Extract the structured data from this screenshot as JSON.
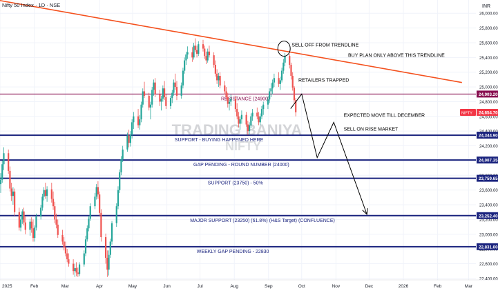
{
  "header": {
    "symbol_title": "Nifty 50 Index · 1D · NSE",
    "currency": "INR"
  },
  "watermark": {
    "line1": "TRADING BANIYA",
    "line2": "NIFTY"
  },
  "colors": {
    "up": "#26a69a",
    "down": "#ef5350",
    "trendline": "#f4511e",
    "resistance": "#880e4f",
    "support": "#1a237e",
    "label_bg_support": "#1a237e",
    "label_bg_resistance": "#880e4f",
    "label_bg_current": "#f23645"
  },
  "chart_data": {
    "type": "candlestick",
    "y_axis": {
      "ticks": [
        22400,
        22600,
        22800,
        23000,
        23200,
        23400,
        23600,
        23800,
        24000,
        24200,
        24400,
        24600,
        24800,
        25000,
        25200,
        25400,
        25600,
        25800,
        26000
      ],
      "tick_labels": [
        "22,400.00",
        "22,600.00",
        "22,800.00",
        "23,000.00",
        "23,200.00",
        "23,400.00",
        "23,600.00",
        "23,800.00",
        "24,000.00",
        "24,200.00",
        "24,400.00",
        "24,600.00",
        "24,800.00",
        "25,000.00",
        "25,200.00",
        "25,400.00",
        "25,600.00",
        "25,800.00",
        "26,000.00"
      ],
      "range": [
        22380,
        26180
      ]
    },
    "x_axis": {
      "labels": [
        "2025",
        "Feb",
        "Mar",
        "Apr",
        "May",
        "Jun",
        "Jul",
        "Aug",
        "Sep",
        "Oct",
        "Nov",
        "Dec",
        "2026",
        "Feb",
        "Mar"
      ],
      "label_days": [
        0,
        31,
        59,
        90,
        120,
        151,
        181,
        212,
        243,
        273,
        304,
        334,
        365,
        396,
        424
      ]
    },
    "price_labels": [
      {
        "text": "24,903.20",
        "value": 24903.2,
        "kind": "resistance"
      },
      {
        "text": "24,654.70",
        "value": 24654.7,
        "kind": "current",
        "tag": "NIFTY"
      },
      {
        "text": "24,344.90",
        "value": 24344.9,
        "kind": "support"
      },
      {
        "text": "24,007.35",
        "value": 24007.35,
        "kind": "support"
      },
      {
        "text": "23,759.65",
        "value": 23759.65,
        "kind": "support"
      },
      {
        "text": "23,252.40",
        "value": 23252.4,
        "kind": "support"
      },
      {
        "text": "22,831.00",
        "value": 22831,
        "kind": "support"
      }
    ],
    "horizontal_levels": [
      {
        "value": 24903.2,
        "label": "RESISTANCE (24900)",
        "kind": "resistance",
        "label_day": 200
      },
      {
        "value": 24344.9,
        "label": "SUPPORT - BUYING HAPPENED HERE",
        "kind": "support",
        "label_day": 158
      },
      {
        "value": 24007.35,
        "label": "GAP PENDING - ROUND NUMBER (24000)",
        "kind": "support",
        "label_day": 175
      },
      {
        "value": 23759.65,
        "label": "SUPPORT (23750) - 50%",
        "kind": "support",
        "label_day": 188
      },
      {
        "value": 23252.4,
        "label": "MAJOR SUPPORT (23250) (61.8%) (H&S Target) (CONFLUENCE)",
        "kind": "support",
        "label_day": 172
      },
      {
        "value": 22831,
        "label": "WEEKLY GAP PENDING - 22830",
        "kind": "support",
        "label_day": 178
      }
    ],
    "trendline": {
      "start": {
        "day": -3,
        "value": 26180
      },
      "end": {
        "day": 418,
        "value": 25060
      }
    },
    "annotations": [
      {
        "text": "SELL OFF FROM TRENDLINE",
        "day": 264,
        "value": 25550
      },
      {
        "text": "BUY PLAN ONLY ABOVE THIS TRENDLINE",
        "day": 315,
        "value": 25410
      },
      {
        "text": "RETAILERS TRAPPED",
        "day": 270,
        "value": 25070
      },
      {
        "text": "EXPECTED MOVE TILL DECEMBER",
        "day": 311,
        "value": 24595
      },
      {
        "text": "SELL ON RISE MARKET",
        "day": 311,
        "value": 24405
      }
    ],
    "callout_circle": {
      "day": 257,
      "value": 25520
    },
    "projection_path": [
      {
        "day": 263,
        "value": 24705
      },
      {
        "day": 273,
        "value": 24903
      },
      {
        "day": 287,
        "value": 24040
      },
      {
        "day": 302,
        "value": 24520
      },
      {
        "day": 332,
        "value": 23270
      }
    ],
    "candles": [
      {
        "o": 23680,
        "h": 23830,
        "l": 23560,
        "c": 23740
      },
      {
        "o": 23740,
        "h": 24000,
        "l": 23700,
        "c": 23950
      },
      {
        "o": 23950,
        "h": 24180,
        "l": 23870,
        "c": 24100
      },
      {
        "o": 24100,
        "h": 24150,
        "l": 23820,
        "c": 23860
      },
      {
        "o": 23860,
        "h": 23920,
        "l": 23580,
        "c": 23620
      },
      {
        "o": 23620,
        "h": 23700,
        "l": 23450,
        "c": 23520
      },
      {
        "o": 23520,
        "h": 23640,
        "l": 23400,
        "c": 23580
      },
      {
        "o": 23580,
        "h": 23620,
        "l": 23250,
        "c": 23300
      },
      {
        "o": 23300,
        "h": 23360,
        "l": 23050,
        "c": 23090
      },
      {
        "o": 23090,
        "h": 23250,
        "l": 23040,
        "c": 23200
      },
      {
        "o": 23200,
        "h": 23340,
        "l": 23140,
        "c": 23310
      },
      {
        "o": 23310,
        "h": 23360,
        "l": 23120,
        "c": 23160
      },
      {
        "o": 23160,
        "h": 23240,
        "l": 23000,
        "c": 23060
      },
      {
        "o": 23060,
        "h": 23210,
        "l": 22980,
        "c": 23170
      },
      {
        "o": 23170,
        "h": 23230,
        "l": 23020,
        "c": 23080
      },
      {
        "o": 23080,
        "h": 23200,
        "l": 22900,
        "c": 22950
      },
      {
        "o": 22950,
        "h": 23120,
        "l": 22900,
        "c": 23090
      },
      {
        "o": 23090,
        "h": 23280,
        "l": 23050,
        "c": 23240
      },
      {
        "o": 23240,
        "h": 23400,
        "l": 23200,
        "c": 23360
      },
      {
        "o": 23360,
        "h": 23550,
        "l": 23320,
        "c": 23510
      },
      {
        "o": 23510,
        "h": 23640,
        "l": 23460,
        "c": 23600
      },
      {
        "o": 23600,
        "h": 23700,
        "l": 23480,
        "c": 23520
      },
      {
        "o": 23520,
        "h": 23650,
        "l": 23440,
        "c": 23610
      },
      {
        "o": 23610,
        "h": 23700,
        "l": 23430,
        "c": 23480
      },
      {
        "o": 23480,
        "h": 23580,
        "l": 23330,
        "c": 23380
      },
      {
        "o": 23380,
        "h": 23440,
        "l": 23150,
        "c": 23200
      },
      {
        "o": 23200,
        "h": 23280,
        "l": 23080,
        "c": 23130
      },
      {
        "o": 23130,
        "h": 23200,
        "l": 22950,
        "c": 22990
      },
      {
        "o": 22990,
        "h": 23060,
        "l": 22860,
        "c": 22900
      },
      {
        "o": 22900,
        "h": 22960,
        "l": 22780,
        "c": 22820
      },
      {
        "o": 22820,
        "h": 22900,
        "l": 22700,
        "c": 22740
      },
      {
        "o": 22740,
        "h": 22800,
        "l": 22620,
        "c": 22660
      },
      {
        "o": 22660,
        "h": 22740,
        "l": 22560,
        "c": 22600
      },
      {
        "o": 22600,
        "h": 22660,
        "l": 22450,
        "c": 22500
      },
      {
        "o": 22500,
        "h": 22600,
        "l": 22420,
        "c": 22540
      },
      {
        "o": 22540,
        "h": 22620,
        "l": 22430,
        "c": 22480
      },
      {
        "o": 22480,
        "h": 22550,
        "l": 22420,
        "c": 22460
      },
      {
        "o": 22460,
        "h": 22620,
        "l": 22430,
        "c": 22590
      },
      {
        "o": 22590,
        "h": 22780,
        "l": 22560,
        "c": 22740
      },
      {
        "o": 22740,
        "h": 22980,
        "l": 22700,
        "c": 22930
      },
      {
        "o": 22930,
        "h": 23120,
        "l": 22900,
        "c": 23080
      },
      {
        "o": 23080,
        "h": 23250,
        "l": 23040,
        "c": 23210
      },
      {
        "o": 23210,
        "h": 23420,
        "l": 23180,
        "c": 23380
      },
      {
        "o": 23380,
        "h": 23560,
        "l": 23340,
        "c": 23510
      },
      {
        "o": 23510,
        "h": 23680,
        "l": 23470,
        "c": 23640
      },
      {
        "o": 23640,
        "h": 23720,
        "l": 23480,
        "c": 23540
      },
      {
        "o": 23540,
        "h": 23580,
        "l": 23250,
        "c": 23290
      },
      {
        "o": 23290,
        "h": 23340,
        "l": 22900,
        "c": 22960
      },
      {
        "o": 22960,
        "h": 23010,
        "l": 22600,
        "c": 22680
      },
      {
        "o": 22680,
        "h": 22780,
        "l": 22420,
        "c": 22520
      },
      {
        "o": 22520,
        "h": 22780,
        "l": 22440,
        "c": 22720
      },
      {
        "o": 22720,
        "h": 22940,
        "l": 22680,
        "c": 22900
      },
      {
        "o": 22900,
        "h": 23180,
        "l": 22860,
        "c": 23150
      },
      {
        "o": 23150,
        "h": 23420,
        "l": 23100,
        "c": 23380
      },
      {
        "o": 23380,
        "h": 23650,
        "l": 23340,
        "c": 23600
      },
      {
        "o": 23600,
        "h": 23880,
        "l": 23560,
        "c": 23840
      },
      {
        "o": 23840,
        "h": 24060,
        "l": 23800,
        "c": 24020
      },
      {
        "o": 24020,
        "h": 24200,
        "l": 23980,
        "c": 24150
      },
      {
        "o": 24150,
        "h": 24380,
        "l": 24120,
        "c": 24340
      },
      {
        "o": 24340,
        "h": 24420,
        "l": 24180,
        "c": 24240
      },
      {
        "o": 24240,
        "h": 24400,
        "l": 24190,
        "c": 24350
      },
      {
        "o": 24350,
        "h": 24560,
        "l": 24300,
        "c": 24520
      },
      {
        "o": 24520,
        "h": 24660,
        "l": 24430,
        "c": 24600
      },
      {
        "o": 24600,
        "h": 24700,
        "l": 24440,
        "c": 24480
      },
      {
        "o": 24480,
        "h": 24620,
        "l": 24420,
        "c": 24560
      },
      {
        "o": 24560,
        "h": 24800,
        "l": 24520,
        "c": 24760
      },
      {
        "o": 24760,
        "h": 24980,
        "l": 24720,
        "c": 24940
      },
      {
        "o": 24940,
        "h": 25070,
        "l": 24850,
        "c": 24880
      },
      {
        "o": 24880,
        "h": 24920,
        "l": 24680,
        "c": 24720
      },
      {
        "o": 24720,
        "h": 24800,
        "l": 24560,
        "c": 24760
      },
      {
        "o": 24760,
        "h": 25000,
        "l": 24720,
        "c": 24960
      },
      {
        "o": 24960,
        "h": 25100,
        "l": 24880,
        "c": 25060
      },
      {
        "o": 25060,
        "h": 25120,
        "l": 24860,
        "c": 24900
      },
      {
        "o": 24900,
        "h": 24960,
        "l": 24740,
        "c": 24800
      },
      {
        "o": 24800,
        "h": 24880,
        "l": 24680,
        "c": 24840
      },
      {
        "o": 24840,
        "h": 25020,
        "l": 24800,
        "c": 24980
      },
      {
        "o": 24980,
        "h": 25080,
        "l": 24820,
        "c": 24860
      },
      {
        "o": 24860,
        "h": 24900,
        "l": 24700,
        "c": 24740
      },
      {
        "o": 24740,
        "h": 24880,
        "l": 24700,
        "c": 24850
      },
      {
        "o": 24850,
        "h": 24960,
        "l": 24780,
        "c": 24920
      },
      {
        "o": 24920,
        "h": 25100,
        "l": 24880,
        "c": 25060
      },
      {
        "o": 25060,
        "h": 25180,
        "l": 24960,
        "c": 25000
      },
      {
        "o": 25000,
        "h": 25080,
        "l": 24820,
        "c": 24880
      },
      {
        "o": 24880,
        "h": 25060,
        "l": 24840,
        "c": 25020
      },
      {
        "o": 25020,
        "h": 25260,
        "l": 24980,
        "c": 25220
      },
      {
        "o": 25220,
        "h": 25400,
        "l": 25180,
        "c": 25360
      },
      {
        "o": 25360,
        "h": 25480,
        "l": 25300,
        "c": 25440
      },
      {
        "o": 25440,
        "h": 25550,
        "l": 25380,
        "c": 25470
      },
      {
        "o": 25470,
        "h": 25540,
        "l": 25340,
        "c": 25400
      },
      {
        "o": 25400,
        "h": 25600,
        "l": 25370,
        "c": 25560
      },
      {
        "o": 25560,
        "h": 25660,
        "l": 25470,
        "c": 25500
      },
      {
        "o": 25500,
        "h": 25560,
        "l": 25400,
        "c": 25450
      },
      {
        "o": 25450,
        "h": 25620,
        "l": 25420,
        "c": 25580
      },
      {
        "o": 25580,
        "h": 25640,
        "l": 25480,
        "c": 25520
      },
      {
        "o": 25520,
        "h": 25560,
        "l": 25380,
        "c": 25420
      },
      {
        "o": 25420,
        "h": 25480,
        "l": 25310,
        "c": 25360
      },
      {
        "o": 25360,
        "h": 25520,
        "l": 25330,
        "c": 25480
      },
      {
        "o": 25480,
        "h": 25560,
        "l": 25400,
        "c": 25430
      },
      {
        "o": 25430,
        "h": 25470,
        "l": 25260,
        "c": 25300
      },
      {
        "o": 25300,
        "h": 25360,
        "l": 25140,
        "c": 25180
      },
      {
        "o": 25180,
        "h": 25240,
        "l": 25040,
        "c": 25090
      },
      {
        "o": 25090,
        "h": 25190,
        "l": 25000,
        "c": 25150
      },
      {
        "o": 25150,
        "h": 25200,
        "l": 24980,
        "c": 25020
      },
      {
        "o": 25020,
        "h": 25080,
        "l": 24900,
        "c": 24940
      },
      {
        "o": 24940,
        "h": 25000,
        "l": 24820,
        "c": 24860
      },
      {
        "o": 24860,
        "h": 24920,
        "l": 24720,
        "c": 24770
      },
      {
        "o": 24770,
        "h": 24850,
        "l": 24680,
        "c": 24800
      },
      {
        "o": 24800,
        "h": 24900,
        "l": 24740,
        "c": 24840
      },
      {
        "o": 24840,
        "h": 24880,
        "l": 24660,
        "c": 24700
      },
      {
        "o": 24700,
        "h": 24780,
        "l": 24560,
        "c": 24600
      },
      {
        "o": 24600,
        "h": 24660,
        "l": 24450,
        "c": 24500
      },
      {
        "o": 24500,
        "h": 24600,
        "l": 24420,
        "c": 24560
      },
      {
        "o": 24560,
        "h": 24680,
        "l": 24500,
        "c": 24620
      },
      {
        "o": 24620,
        "h": 24660,
        "l": 24460,
        "c": 24490
      },
      {
        "o": 24490,
        "h": 24540,
        "l": 24350,
        "c": 24400
      },
      {
        "o": 24400,
        "h": 24520,
        "l": 24360,
        "c": 24480
      },
      {
        "o": 24480,
        "h": 24640,
        "l": 24440,
        "c": 24600
      },
      {
        "o": 24600,
        "h": 24700,
        "l": 24540,
        "c": 24650
      },
      {
        "o": 24650,
        "h": 24720,
        "l": 24560,
        "c": 24600
      },
      {
        "o": 24600,
        "h": 24660,
        "l": 24480,
        "c": 24520
      },
      {
        "o": 24520,
        "h": 24640,
        "l": 24480,
        "c": 24600
      },
      {
        "o": 24600,
        "h": 24740,
        "l": 24560,
        "c": 24700
      },
      {
        "o": 24700,
        "h": 24800,
        "l": 24620,
        "c": 24760
      },
      {
        "o": 24760,
        "h": 24870,
        "l": 24700,
        "c": 24830
      },
      {
        "o": 24830,
        "h": 24980,
        "l": 24780,
        "c": 24940
      },
      {
        "o": 24940,
        "h": 25050,
        "l": 24860,
        "c": 24980
      },
      {
        "o": 24980,
        "h": 25100,
        "l": 24900,
        "c": 25060
      },
      {
        "o": 25060,
        "h": 25180,
        "l": 25000,
        "c": 25120
      },
      {
        "o": 25120,
        "h": 25200,
        "l": 25000,
        "c": 25040
      },
      {
        "o": 25040,
        "h": 25140,
        "l": 24960,
        "c": 25090
      },
      {
        "o": 25090,
        "h": 25260,
        "l": 25060,
        "c": 25220
      },
      {
        "o": 25220,
        "h": 25380,
        "l": 25180,
        "c": 25330
      },
      {
        "o": 25330,
        "h": 25460,
        "l": 25280,
        "c": 25420
      },
      {
        "o": 25420,
        "h": 25450,
        "l": 25250,
        "c": 25300
      },
      {
        "o": 25300,
        "h": 25330,
        "l": 25100,
        "c": 25150
      },
      {
        "o": 25150,
        "h": 25200,
        "l": 24950,
        "c": 24990
      },
      {
        "o": 24990,
        "h": 25010,
        "l": 24780,
        "c": 24820
      },
      {
        "o": 24820,
        "h": 24850,
        "l": 24600,
        "c": 24655
      }
    ]
  }
}
